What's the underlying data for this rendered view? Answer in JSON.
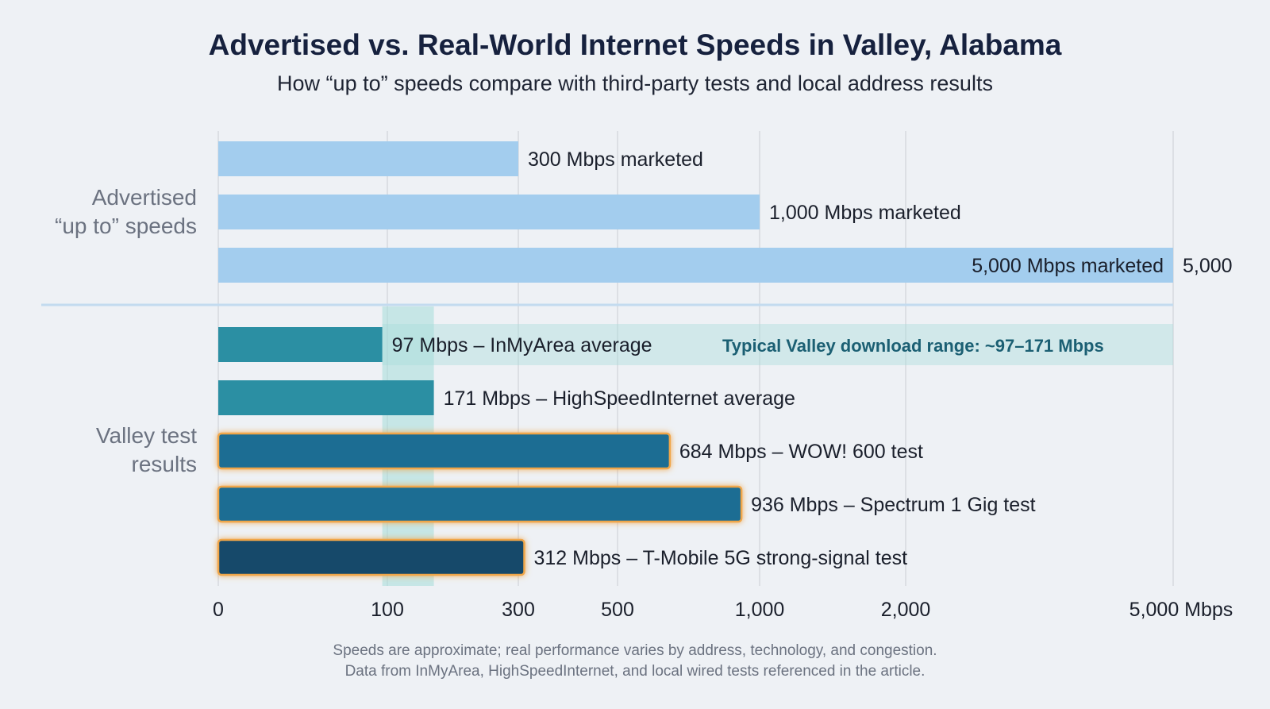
{
  "header": {
    "title": "Advertised vs. Real-World Internet Speeds in Valley, Alabama",
    "subtitle": "How “up to” speeds compare with third-party tests and local address results"
  },
  "footnotes": [
    "Speeds are approximate; real performance varies by address, technology, and congestion.",
    "Data from InMyArea, HighSpeedInternet, and local wired tests referenced in the article."
  ],
  "colors": {
    "advertised": "#a3cdee",
    "test_teal": "#2b8fa3",
    "test_blue": "#1f6d93",
    "test_dark": "#154a6b",
    "highlight_glow": "#f0a64a",
    "range_band": "#a6dcd9",
    "gridline": "#d5d9df",
    "divider": "#c3dbef"
  },
  "chart_data": {
    "type": "bar",
    "orientation": "horizontal",
    "x_scale": "nonlinear",
    "x_ticks": [
      {
        "value": 0,
        "label": "0"
      },
      {
        "value": 100,
        "label": "100"
      },
      {
        "value": 300,
        "label": "300"
      },
      {
        "value": 500,
        "label": "500"
      },
      {
        "value": 1000,
        "label": "1,000"
      },
      {
        "value": 2000,
        "label": "2,000"
      },
      {
        "value": 5000,
        "label": "5,000 Mbps"
      }
    ],
    "groups": [
      {
        "label_lines": [
          "Advertised",
          "“up to” speeds"
        ],
        "bars": [
          {
            "value": 300,
            "label": "300 Mbps marketed",
            "color": "advertised",
            "highlight": false
          },
          {
            "value": 1000,
            "label": "1,000 Mbps marketed",
            "color": "advertised",
            "highlight": false
          },
          {
            "value": 5000,
            "label": "5,000 Mbps marketed",
            "value_label": "5,000",
            "color": "advertised",
            "highlight": false,
            "label_inside": true
          }
        ]
      },
      {
        "label_lines": [
          "Valley test",
          "results"
        ],
        "bars": [
          {
            "value": 97,
            "label": "97 Mbps – InMyArea average",
            "color": "test_teal",
            "highlight": false
          },
          {
            "value": 171,
            "label": "171 Mbps – HighSpeedInternet average",
            "color": "test_teal",
            "highlight": false
          },
          {
            "value": 684,
            "label": "684 Mbps – WOW! 600 test",
            "color": "test_blue",
            "highlight": true
          },
          {
            "value": 936,
            "label": "936 Mbps – Spectrum 1 Gig test",
            "color": "test_blue",
            "highlight": true
          },
          {
            "value": 312,
            "label": "312 Mbps – T-Mobile 5G strong-signal test",
            "color": "test_dark",
            "highlight": true
          }
        ]
      }
    ],
    "range_band": {
      "min": 97,
      "max": 171,
      "label": "Typical Valley download range: ~97–171 Mbps"
    }
  }
}
